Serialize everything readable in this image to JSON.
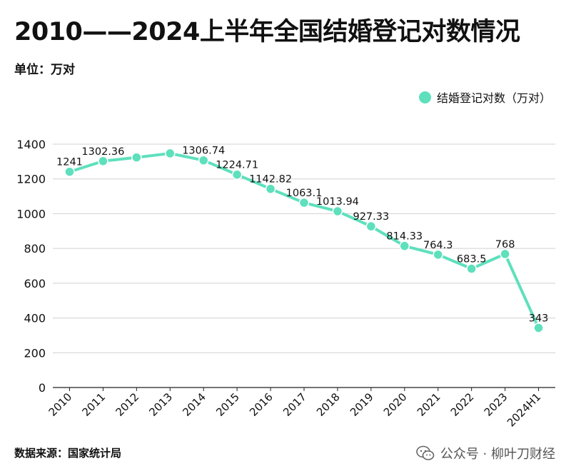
{
  "header": {
    "title": "2010——2024上半年全国结婚登记对数情况",
    "unit": "单位：万对"
  },
  "footer": {
    "source": "数据来源：国家统计局",
    "watermark": "公众号 · 柳叶刀财经",
    "watermark_icon": "wechat-icon"
  },
  "colors": {
    "series": "#5ee0bd",
    "grid": "#d0d0d0",
    "axis": "#222222"
  },
  "chart_data": {
    "type": "line",
    "title": "2010——2024上半年全国结婚登记对数情况",
    "ylabel": "单位：万对",
    "ylim": [
      0,
      1400
    ],
    "yticks": [
      0,
      200,
      400,
      600,
      800,
      1000,
      1200,
      1400
    ],
    "grid": true,
    "legend_position": "top-right",
    "categories": [
      "2010",
      "2011",
      "2012",
      "2013",
      "2014",
      "2015",
      "2016",
      "2017",
      "2018",
      "2019",
      "2020",
      "2021",
      "2022",
      "2023",
      "2024H1"
    ],
    "series": [
      {
        "name": "结婚登记对数（万对）",
        "values": [
          1241,
          1302.36,
          1323.59,
          1346.93,
          1306.74,
          1224.71,
          1142.82,
          1063.1,
          1013.94,
          927.33,
          814.33,
          764.3,
          683.5,
          768,
          343
        ],
        "labels": [
          "1241",
          "1302.36",
          "",
          "",
          "1306.74",
          "1224.71",
          "1142.82",
          "1063.1",
          "1013.94",
          "927.33",
          "814.33",
          "764.3",
          "683.5",
          "768",
          "343"
        ]
      }
    ]
  }
}
